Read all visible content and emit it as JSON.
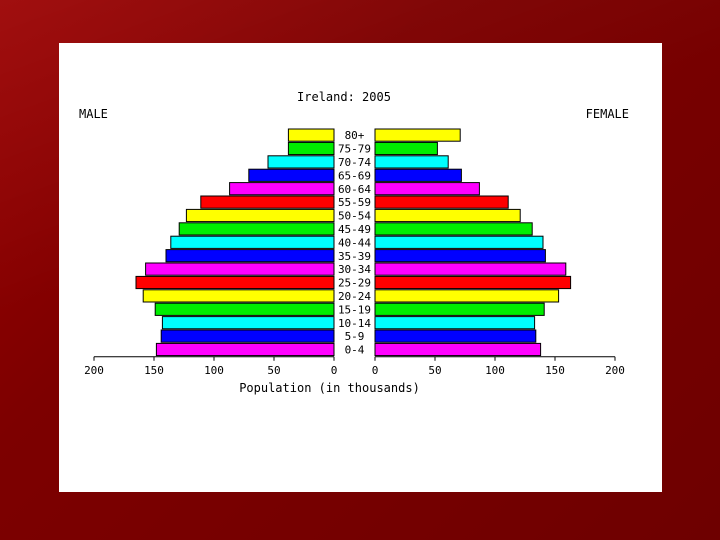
{
  "slide": {
    "background_color": "#7d0000",
    "card_color": "#ffffff"
  },
  "chart_data": {
    "type": "bar",
    "title": "Ireland: 2005",
    "left_label": "MALE",
    "right_label": "FEMALE",
    "xlabel": "Population (in thousands)",
    "xlim": [
      0,
      200
    ],
    "xticks": [
      0,
      50,
      100,
      150,
      200
    ],
    "categories": [
      "80+",
      "75-79",
      "70-74",
      "65-69",
      "60-64",
      "55-59",
      "50-54",
      "45-49",
      "40-44",
      "35-39",
      "30-34",
      "25-29",
      "20-24",
      "15-19",
      "10-14",
      "5-9",
      "0-4"
    ],
    "colors": [
      "#ffff00",
      "#00ee00",
      "#00ffff",
      "#0000ff",
      "#ff00ff",
      "#ff0000",
      "#ffff00",
      "#00ee00",
      "#00ffff",
      "#0000ff",
      "#ff00ff",
      "#ff0000",
      "#ffff00",
      "#00ee00",
      "#00ffff",
      "#0000ff",
      "#ff00ff"
    ],
    "series": [
      {
        "name": "MALE",
        "values": [
          38,
          38,
          55,
          71,
          87,
          111,
          123,
          129,
          136,
          140,
          157,
          165,
          159,
          149,
          143,
          144,
          148
        ]
      },
      {
        "name": "FEMALE",
        "values": [
          71,
          52,
          61,
          72,
          87,
          111,
          121,
          131,
          140,
          142,
          159,
          163,
          153,
          141,
          133,
          134,
          138
        ]
      }
    ],
    "grid": false
  }
}
